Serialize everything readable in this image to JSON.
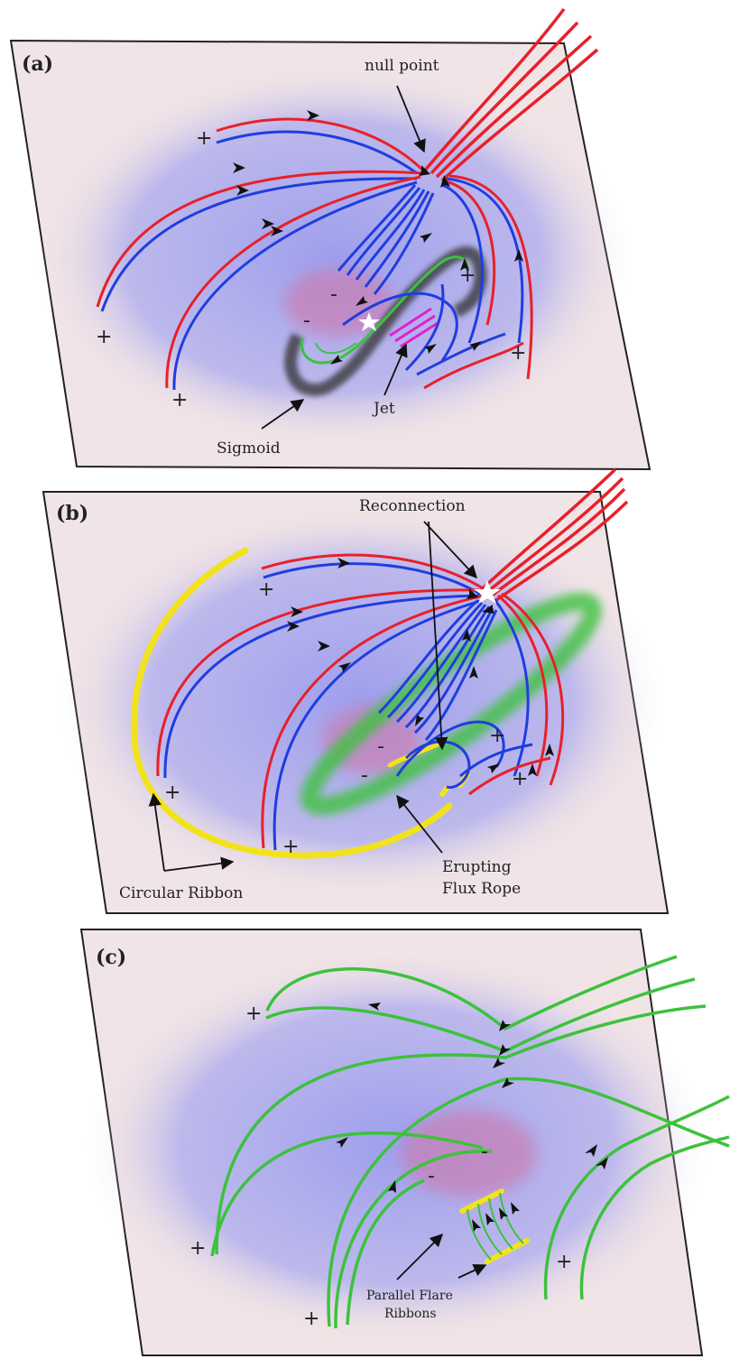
{
  "panels": [
    {
      "label": "(a)",
      "annotations": [
        "null point",
        "Jet",
        "Sigmoid"
      ],
      "signs": [
        "+",
        "+",
        "+",
        "+",
        "+",
        "-",
        "-"
      ]
    },
    {
      "label": "(b)",
      "annotations": [
        "Reconnection",
        "Circular Ribbon",
        "Erupting",
        "Flux Rope"
      ],
      "signs": [
        "+",
        "+",
        "+",
        "+",
        "+",
        "-",
        "-"
      ]
    },
    {
      "label": "(c)",
      "annotations": [
        "Parallel Flare",
        "Ribbons"
      ],
      "signs": [
        "+",
        "+",
        "+",
        "+",
        "-",
        "-"
      ]
    }
  ],
  "colors": {
    "panel_background": "#f1e4e6",
    "magnetic_region": "#8f92ee",
    "negative_polarity": "#c97fb3",
    "open_field_line": "#e8202a",
    "closed_field_line": "#1f3de0",
    "flux_rope": "#3cc23c",
    "ribbon": "#f2e21e",
    "jet": "#e020d0",
    "sigmoid": "#333333",
    "arrow": "#111111"
  }
}
